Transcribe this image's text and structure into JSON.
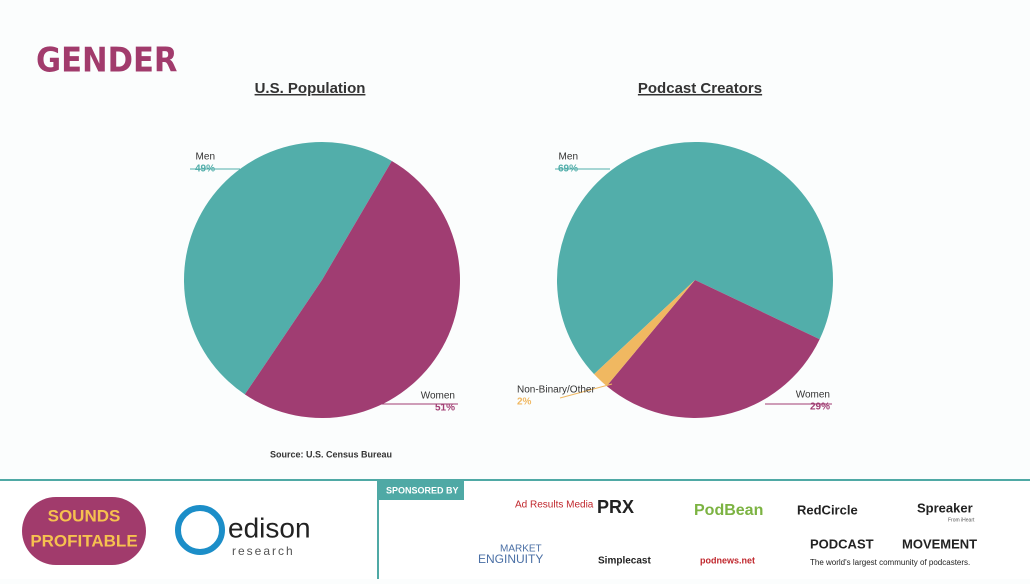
{
  "title": "GENDER",
  "source": "Source: U.S. Census Bureau",
  "chart_data": [
    {
      "type": "pie",
      "title": "U.S. Population",
      "categories": [
        "Men",
        "Women"
      ],
      "values": [
        49,
        51
      ],
      "value_labels": [
        "49%",
        "51%"
      ],
      "colors": [
        "#52aeaa",
        "#a03d72"
      ]
    },
    {
      "type": "pie",
      "title": "Podcast Creators",
      "categories": [
        "Men",
        "Women",
        "Non-Binary/Other"
      ],
      "values": [
        69,
        29,
        2
      ],
      "value_labels": [
        "69%",
        "29%",
        "2%"
      ],
      "colors": [
        "#52aeaa",
        "#a03d72",
        "#f0b861"
      ]
    }
  ],
  "footer": {
    "sounds": [
      "SOUNDS",
      "PROFITABLE"
    ],
    "edison": [
      "edison",
      "research"
    ],
    "sponsored_by": "SPONSORED BY",
    "sponsors": [
      "Ad Results Media",
      "PRX",
      "PodBean",
      "RedCircle",
      "Spreaker",
      "From iHeart",
      "MARKET",
      "ENGINUITY",
      "Simplecast",
      "podnews.net",
      "PODCAST",
      "MOVEMENT",
      "The world's largest community of podcasters."
    ]
  }
}
